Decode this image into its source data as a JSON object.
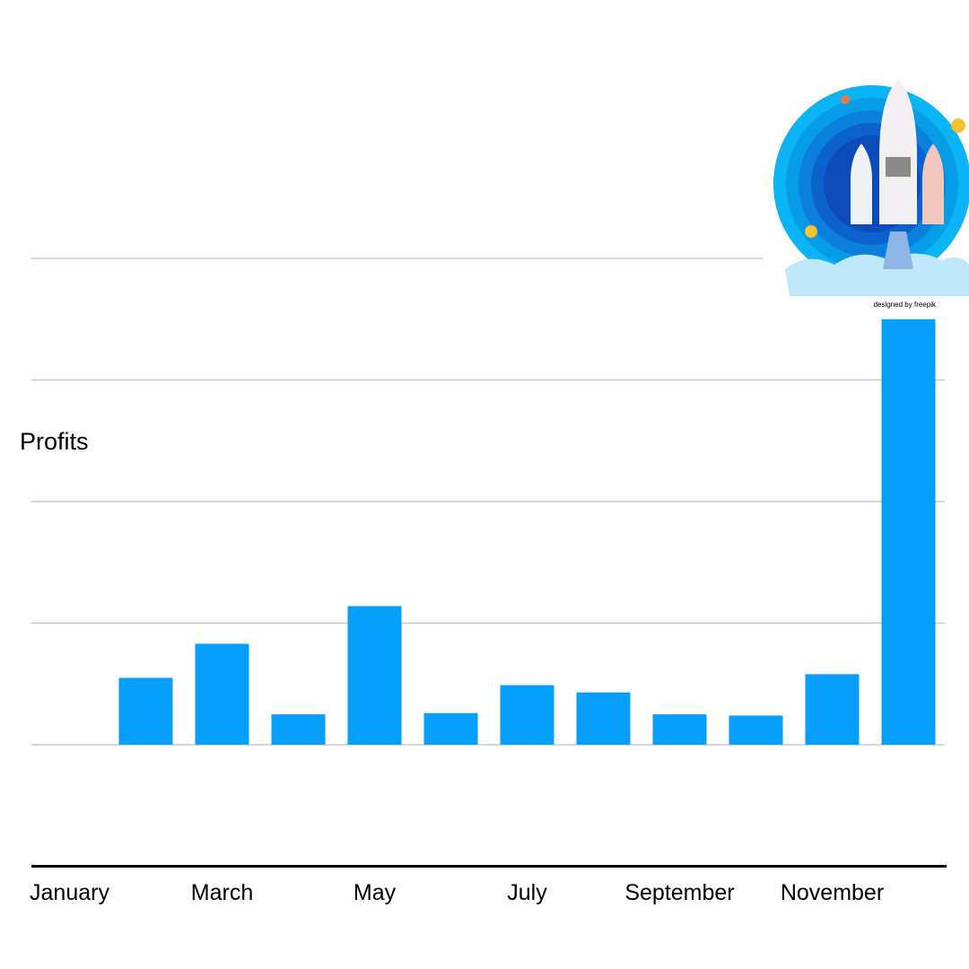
{
  "chart_data": {
    "type": "bar",
    "y_label": "Profits",
    "credit": "designed by freepik",
    "categories": [
      "January",
      null,
      "March",
      null,
      "May",
      null,
      "July",
      null,
      "September",
      null,
      "November",
      null
    ],
    "values": [
      0,
      0.55,
      0.83,
      0.25,
      1.14,
      0.26,
      0.49,
      0.43,
      0.25,
      0.24,
      0.58,
      3.5
    ],
    "color": "#069ffc",
    "ylim": [
      -1,
      4
    ],
    "yticks": [
      0,
      1,
      2,
      3,
      4
    ],
    "grid": true
  }
}
